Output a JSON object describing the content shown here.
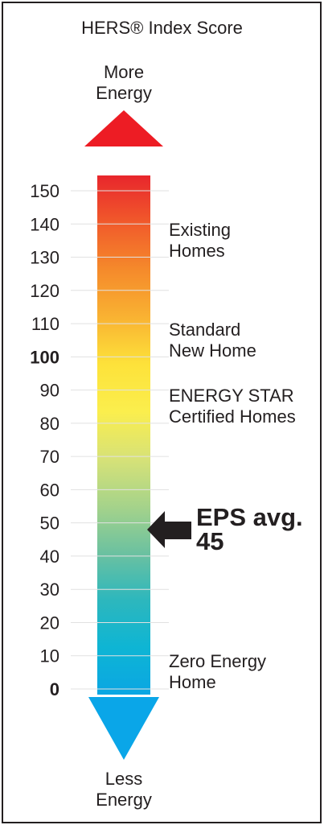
{
  "title": "HERS® Index Score",
  "top_label": "More\nEnergy",
  "bottom_label": "Less\nEnergy",
  "scale": {
    "ticks": [
      {
        "value": 150,
        "bold": false
      },
      {
        "value": 140,
        "bold": false
      },
      {
        "value": 130,
        "bold": false
      },
      {
        "value": 120,
        "bold": false
      },
      {
        "value": 110,
        "bold": false
      },
      {
        "value": 100,
        "bold": true
      },
      {
        "value": 90,
        "bold": false
      },
      {
        "value": 80,
        "bold": false
      },
      {
        "value": 70,
        "bold": false
      },
      {
        "value": 60,
        "bold": false
      },
      {
        "value": 50,
        "bold": false
      },
      {
        "value": 40,
        "bold": false
      },
      {
        "value": 30,
        "bold": false
      },
      {
        "value": 20,
        "bold": false
      },
      {
        "value": 10,
        "bold": false
      },
      {
        "value": 0,
        "bold": true
      }
    ],
    "gradient_colors": [
      "#e8262c",
      "#f15a2b",
      "#f58a2b",
      "#f9b232",
      "#fde23a",
      "#fbee4d",
      "#d7e277",
      "#a6d38a",
      "#6cc1a0",
      "#2db7bd",
      "#0eb5d4",
      "#0aa6e3"
    ],
    "top_arrow_color": "#ed1c24",
    "bottom_arrow_color": "#0aa6e8"
  },
  "annotations": [
    {
      "key": "existing",
      "text": "Existing\nHomes",
      "value": 135
    },
    {
      "key": "standard",
      "text": "Standard\nNew Home",
      "value": 105
    },
    {
      "key": "energy_star",
      "text": "ENERGY STAR\nCertified Homes",
      "value": 85
    },
    {
      "key": "zero",
      "text": "Zero Energy\nHome",
      "value": 5
    }
  ],
  "eps": {
    "label": "EPS avg.\n45",
    "value": 45,
    "arrow_color": "#231f20"
  }
}
